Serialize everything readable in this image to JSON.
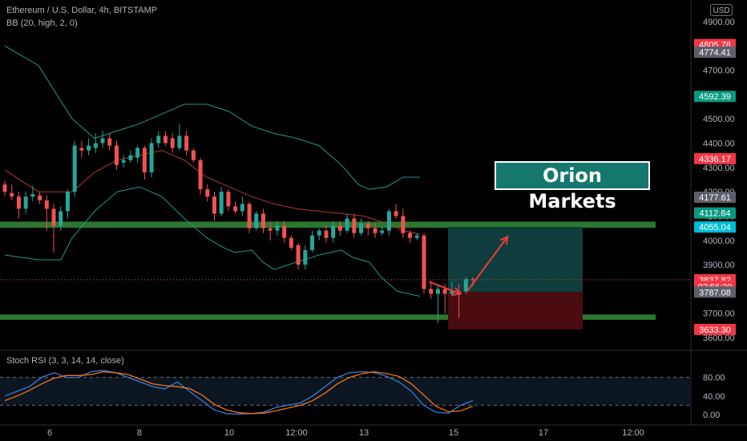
{
  "header": {
    "symbol_title": "Ethereum / U.S. Dollar, 4h, BITSTAMP",
    "indicator_bb": "BB (20, high, 2, 0)",
    "indicator_stoch": "Stoch RSI (3, 3, 14, 14, close)",
    "currency": "USD"
  },
  "brand": {
    "label": "Orion Markets"
  },
  "colors": {
    "up": "#26a69a",
    "down": "#ef5350",
    "bb_band": "#1e9a92",
    "bb_basis": "#b03a2e",
    "zone_green": "#2e7d32",
    "stoch_k": "#3a7bd5",
    "stoch_d": "#f0731e",
    "target_box": "#0f3c3c",
    "stop_box": "#4a0c10",
    "arrow": "#ef3a3a"
  },
  "chart_data": {
    "type": "candlestick",
    "y_axis": {
      "min": 3550,
      "max": 4950,
      "ticks": [
        "4900.00",
        "4800.00",
        "4700.00",
        "4600.00",
        "4500.00",
        "4400.00",
        "4300.00",
        "4200.00",
        "4100.00",
        "4000.00",
        "3900.00",
        "3800.00",
        "3700.00",
        "3600.00"
      ],
      "tick_values": [
        4900,
        4800,
        4700,
        4600,
        4500,
        4400,
        4300,
        4200,
        4100,
        4000,
        3900,
        3800,
        3700,
        3600
      ]
    },
    "x_axis": {
      "labels": [
        "6",
        "8",
        "10",
        "12:00",
        "13",
        "15",
        "17",
        "12:00"
      ],
      "positions": [
        4,
        12,
        20,
        26,
        32,
        40,
        48,
        56
      ],
      "range": [
        0,
        60
      ]
    },
    "price_badges": [
      {
        "label": "4805.78",
        "value": 4805.78,
        "color": "#f23645"
      },
      {
        "label": "4774.41",
        "value": 4774.41,
        "color": "#5d606b"
      },
      {
        "label": "4592.39",
        "value": 4592.39,
        "color": "#089981"
      },
      {
        "label": "4336.17",
        "value": 4336.17,
        "color": "#f23645"
      },
      {
        "label": "4177.61",
        "value": 4177.61,
        "color": "#5d606b"
      },
      {
        "label": "4112.84",
        "value": 4112.84,
        "color": "#089981"
      },
      {
        "label": "4055.04",
        "value": 4055.04,
        "color": "#00bcd4"
      },
      {
        "label": "3837.82",
        "value": 3837.82,
        "color": "#f23645"
      },
      {
        "label": "02:56:20",
        "value": 3810,
        "color": "#f23645"
      },
      {
        "label": "3787.08",
        "value": 3787.08,
        "color": "#5d606b"
      },
      {
        "label": "3633.30",
        "value": 3633.3,
        "color": "#f23645"
      }
    ],
    "current_price": 3837.82,
    "zones": [
      {
        "name": "resistance",
        "y1": 4077,
        "y2": 4052
      },
      {
        "name": "support",
        "y1": 3695,
        "y2": 3673
      }
    ],
    "position": {
      "x_start": 39.5,
      "x_end": 51.5,
      "entry": 3787.08,
      "target": 4055.04,
      "stop": 3633.3
    },
    "arrows": [
      {
        "from": [
          37.8,
          3830
        ],
        "to": [
          40.6,
          3780
        ]
      },
      {
        "from": [
          41.2,
          3790
        ],
        "to": [
          44.8,
          4015
        ]
      }
    ],
    "candles": [
      [
        4230,
        4200,
        4245,
        4185
      ],
      [
        4195,
        4180,
        4230,
        4165
      ],
      [
        4180,
        4130,
        4200,
        4090
      ],
      [
        4130,
        4180,
        4200,
        4110
      ],
      [
        4180,
        4190,
        4225,
        4160
      ],
      [
        4185,
        4165,
        4200,
        4150
      ],
      [
        4165,
        4130,
        4185,
        4040
      ],
      [
        4130,
        4060,
        4150,
        3950
      ],
      [
        4060,
        4120,
        4140,
        4040
      ],
      [
        4120,
        4200,
        4210,
        4090
      ],
      [
        4200,
        4390,
        4410,
        4180
      ],
      [
        4380,
        4370,
        4410,
        4340
      ],
      [
        4370,
        4390,
        4420,
        4350
      ],
      [
        4380,
        4400,
        4440,
        4360
      ],
      [
        4400,
        4420,
        4450,
        4380
      ],
      [
        4420,
        4390,
        4440,
        4370
      ],
      [
        4390,
        4310,
        4410,
        4290
      ],
      [
        4320,
        4330,
        4350,
        4300
      ],
      [
        4330,
        4350,
        4370,
        4320
      ],
      [
        4340,
        4380,
        4390,
        4320
      ],
      [
        4380,
        4280,
        4390,
        4250
      ],
      [
        4280,
        4400,
        4420,
        4260
      ],
      [
        4400,
        4430,
        4450,
        4380
      ],
      [
        4430,
        4400,
        4450,
        4390
      ],
      [
        4420,
        4380,
        4440,
        4360
      ],
      [
        4380,
        4430,
        4480,
        4370
      ],
      [
        4430,
        4370,
        4450,
        4350
      ],
      [
        4370,
        4330,
        4380,
        4320
      ],
      [
        4330,
        4210,
        4340,
        4190
      ],
      [
        4210,
        4180,
        4230,
        4160
      ],
      [
        4180,
        4110,
        4200,
        4080
      ],
      [
        4110,
        4200,
        4220,
        4100
      ],
      [
        4200,
        4140,
        4210,
        4120
      ],
      [
        4140,
        4120,
        4160,
        4110
      ],
      [
        4120,
        4150,
        4180,
        4100
      ],
      [
        4150,
        4050,
        4160,
        4030
      ],
      [
        4050,
        4110,
        4120,
        4040
      ],
      [
        4110,
        4050,
        4130,
        4030
      ],
      [
        4050,
        4040,
        4080,
        4000
      ],
      [
        4040,
        4060,
        4080,
        4020
      ],
      [
        4060,
        4010,
        4080,
        3990
      ],
      [
        4010,
        3970,
        4020,
        3960
      ],
      [
        3980,
        3900,
        3990,
        3880
      ],
      [
        3900,
        3960,
        3980,
        3880
      ],
      [
        3960,
        4020,
        4040,
        3950
      ],
      [
        4020,
        4040,
        4050,
        4000
      ],
      [
        4040,
        4010,
        4060,
        3990
      ],
      [
        4010,
        4060,
        4080,
        3990
      ],
      [
        4060,
        4040,
        4080,
        4020
      ],
      [
        4040,
        4090,
        4110,
        4030
      ],
      [
        4090,
        4030,
        4110,
        4010
      ],
      [
        4030,
        4070,
        4090,
        4020
      ],
      [
        4070,
        4050,
        4080,
        4020
      ],
      [
        4050,
        4030,
        4070,
        4010
      ],
      [
        4030,
        4040,
        4060,
        4020
      ],
      [
        4040,
        4120,
        4130,
        4020
      ],
      [
        4120,
        4100,
        4150,
        4090
      ],
      [
        4100,
        4030,
        4130,
        4010
      ],
      [
        4030,
        4010,
        4040,
        3990
      ],
      [
        4010,
        4020,
        4030,
        4000
      ],
      [
        4020,
        3800,
        4030,
        3780
      ],
      [
        3800,
        3780,
        3830,
        3760
      ],
      [
        3780,
        3800,
        3820,
        3660
      ],
      [
        3800,
        3780,
        3820,
        3700
      ],
      [
        3780,
        3790,
        3830,
        3770
      ],
      [
        3790,
        3780,
        3820,
        3680
      ],
      [
        3790,
        3840,
        3850,
        3780
      ],
      [
        3840,
        3838,
        3850,
        3810
      ]
    ],
    "bb_upper": [
      [
        0,
        4800
      ],
      [
        3,
        4720
      ],
      [
        6,
        4500
      ],
      [
        8,
        4420
      ],
      [
        10,
        4450
      ],
      [
        12,
        4480
      ],
      [
        14,
        4520
      ],
      [
        16,
        4560
      ],
      [
        18,
        4560
      ],
      [
        20,
        4530
      ],
      [
        22,
        4470
      ],
      [
        24,
        4440
      ],
      [
        26,
        4420
      ],
      [
        28,
        4390
      ],
      [
        30,
        4310
      ],
      [
        31.5,
        4230
      ],
      [
        32.5,
        4210
      ],
      [
        34,
        4220
      ],
      [
        35.5,
        4260
      ],
      [
        37,
        4260
      ]
    ],
    "bb_basis": [
      [
        0,
        4290
      ],
      [
        3,
        4200
      ],
      [
        6,
        4200
      ],
      [
        8,
        4280
      ],
      [
        10,
        4330
      ],
      [
        12,
        4350
      ],
      [
        14,
        4370
      ],
      [
        16,
        4330
      ],
      [
        18,
        4260
      ],
      [
        20,
        4220
      ],
      [
        22,
        4180
      ],
      [
        24,
        4150
      ],
      [
        26,
        4130
      ],
      [
        28,
        4120
      ],
      [
        30,
        4110
      ],
      [
        32,
        4100
      ],
      [
        34,
        4070
      ],
      [
        35.5,
        4040
      ],
      [
        37,
        4025
      ]
    ],
    "bb_lower": [
      [
        0,
        3940
      ],
      [
        3,
        3920
      ],
      [
        5,
        3920
      ],
      [
        6,
        4010
      ],
      [
        8,
        4120
      ],
      [
        10,
        4200
      ],
      [
        12,
        4220
      ],
      [
        14,
        4180
      ],
      [
        16,
        4090
      ],
      [
        18,
        4010
      ],
      [
        19.5,
        3970
      ],
      [
        20.5,
        3950
      ],
      [
        22,
        3960
      ],
      [
        23,
        3910
      ],
      [
        24,
        3880
      ],
      [
        26,
        3910
      ],
      [
        28,
        3940
      ],
      [
        30,
        3960
      ],
      [
        31,
        3930
      ],
      [
        32.5,
        3910
      ],
      [
        33.5,
        3850
      ],
      [
        35,
        3790
      ],
      [
        37,
        3770
      ]
    ],
    "stoch": {
      "range": [
        0,
        100
      ],
      "ticks": [
        "80.00",
        "40.00",
        "0.00"
      ],
      "tick_values": [
        80,
        40,
        0
      ],
      "bands": [
        80,
        20
      ],
      "k": [
        [
          0,
          40
        ],
        [
          1,
          50
        ],
        [
          2,
          60
        ],
        [
          3,
          80
        ],
        [
          4,
          90
        ],
        [
          5,
          80
        ],
        [
          6,
          80
        ],
        [
          7,
          92
        ],
        [
          8,
          95
        ],
        [
          9,
          90
        ],
        [
          10,
          80
        ],
        [
          11,
          70
        ],
        [
          12,
          60
        ],
        [
          13,
          55
        ],
        [
          14,
          70
        ],
        [
          15,
          50
        ],
        [
          16,
          30
        ],
        [
          17,
          10
        ],
        [
          18,
          2
        ],
        [
          19,
          1
        ],
        [
          20,
          2
        ],
        [
          21,
          5
        ],
        [
          22,
          15
        ],
        [
          23,
          20
        ],
        [
          24,
          25
        ],
        [
          25,
          40
        ],
        [
          26,
          60
        ],
        [
          27,
          80
        ],
        [
          28,
          90
        ],
        [
          29,
          92
        ],
        [
          30,
          90
        ],
        [
          31,
          82
        ],
        [
          32,
          70
        ],
        [
          33,
          50
        ],
        [
          34,
          20
        ],
        [
          35,
          5
        ],
        [
          36,
          3
        ],
        [
          37,
          20
        ],
        [
          38,
          30
        ]
      ],
      "d": [
        [
          0,
          30
        ],
        [
          1,
          40
        ],
        [
          2,
          52
        ],
        [
          3,
          66
        ],
        [
          4,
          78
        ],
        [
          5,
          84
        ],
        [
          6,
          84
        ],
        [
          7,
          86
        ],
        [
          8,
          92
        ],
        [
          9,
          90
        ],
        [
          10,
          86
        ],
        [
          11,
          76
        ],
        [
          12,
          66
        ],
        [
          13,
          62
        ],
        [
          14,
          60
        ],
        [
          15,
          56
        ],
        [
          16,
          42
        ],
        [
          17,
          22
        ],
        [
          18,
          10
        ],
        [
          19,
          4
        ],
        [
          20,
          2
        ],
        [
          21,
          3
        ],
        [
          22,
          8
        ],
        [
          23,
          14
        ],
        [
          24,
          20
        ],
        [
          25,
          30
        ],
        [
          26,
          46
        ],
        [
          27,
          66
        ],
        [
          28,
          80
        ],
        [
          29,
          88
        ],
        [
          30,
          92
        ],
        [
          31,
          88
        ],
        [
          32,
          82
        ],
        [
          33,
          66
        ],
        [
          34,
          42
        ],
        [
          35,
          18
        ],
        [
          36,
          6
        ],
        [
          37,
          8
        ],
        [
          38,
          18
        ]
      ]
    }
  }
}
